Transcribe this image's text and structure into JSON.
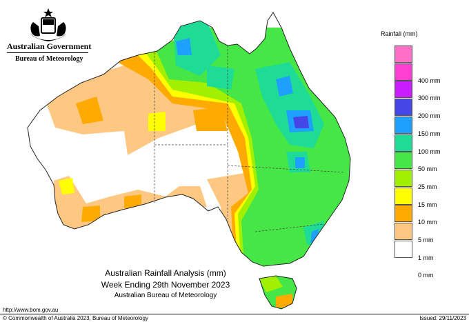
{
  "header": {
    "government": "Australian Government",
    "agency": "Bureau of Meteorology"
  },
  "legend": {
    "title": "Rainfall (mm)",
    "items": [
      {
        "label": "",
        "color": "#ff6ec7"
      },
      {
        "label": "400 mm",
        "color": "#ff3fd2"
      },
      {
        "label": "300 mm",
        "color": "#c81eff"
      },
      {
        "label": "200 mm",
        "color": "#4646e6"
      },
      {
        "label": "150 mm",
        "color": "#1ea0ff"
      },
      {
        "label": "100 mm",
        "color": "#1edc96"
      },
      {
        "label": "50 mm",
        "color": "#46e646"
      },
      {
        "label": "25 mm",
        "color": "#a0f000"
      },
      {
        "label": "15 mm",
        "color": "#ffff00"
      },
      {
        "label": "10 mm",
        "color": "#ffaa00"
      },
      {
        "label": "5 mm",
        "color": "#ffc882"
      },
      {
        "label": "1 mm",
        "color": "#ffffff"
      },
      {
        "label": "0 mm",
        "color": ""
      }
    ]
  },
  "caption": {
    "line1": "Australian Rainfall Analysis (mm)",
    "line2": "Week Ending 29th November 2023",
    "line3": "Australian Bureau of Meteorology"
  },
  "footer": {
    "url": "http://www.bom.gov.au",
    "copyright": "© Commonwealth of Australia 2023, Bureau of Meteorology",
    "issued": "Issued: 29/11/2023"
  }
}
